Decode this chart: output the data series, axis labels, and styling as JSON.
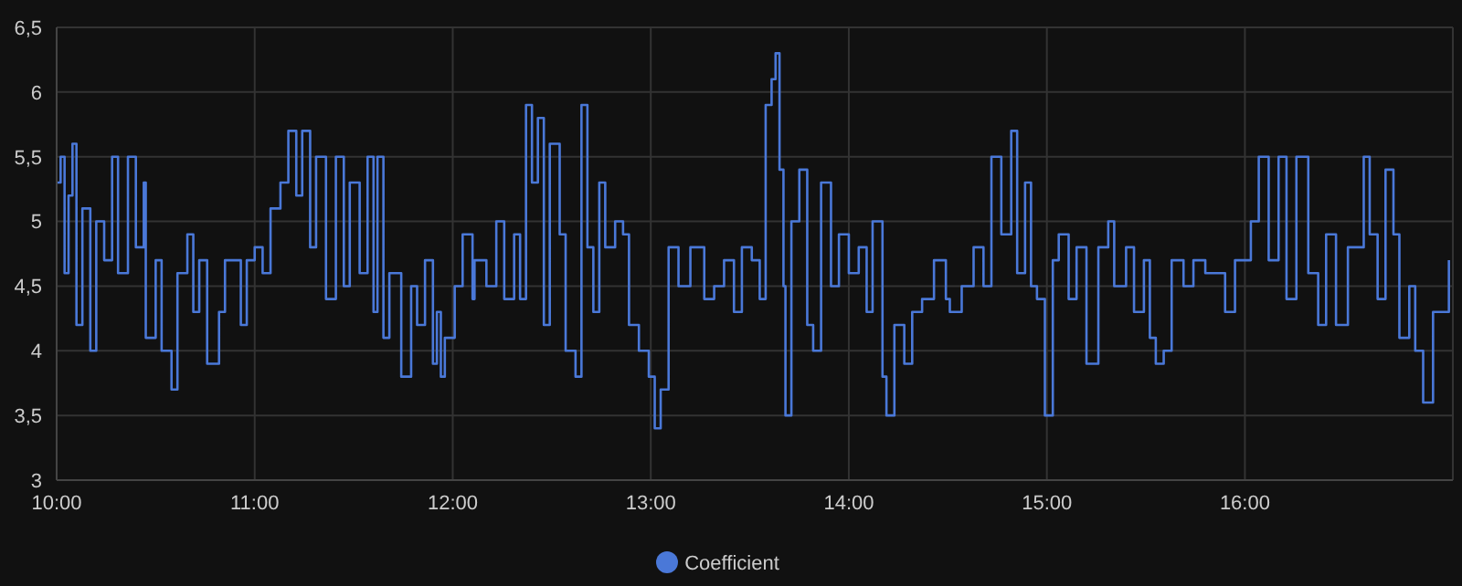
{
  "chart_data": {
    "type": "step",
    "x": [
      10.0,
      10.02,
      10.04,
      10.06,
      10.08,
      10.1,
      10.13,
      10.17,
      10.2,
      10.24,
      10.28,
      10.31,
      10.36,
      10.4,
      10.44,
      10.45,
      10.5,
      10.53,
      10.58,
      10.61,
      10.66,
      10.69,
      10.72,
      10.76,
      10.82,
      10.85,
      10.93,
      10.96,
      11.0,
      11.04,
      11.08,
      11.13,
      11.17,
      11.21,
      11.24,
      11.28,
      11.31,
      11.36,
      11.41,
      11.45,
      11.48,
      11.53,
      11.57,
      11.6,
      11.62,
      11.65,
      11.68,
      11.74,
      11.79,
      11.82,
      11.86,
      11.9,
      11.92,
      11.94,
      11.96,
      12.01,
      12.05,
      12.1,
      12.11,
      12.17,
      12.22,
      12.26,
      12.31,
      12.34,
      12.37,
      12.4,
      12.43,
      12.46,
      12.49,
      12.54,
      12.57,
      12.62,
      12.65,
      12.68,
      12.71,
      12.74,
      12.77,
      12.82,
      12.86,
      12.89,
      12.94,
      12.99,
      13.02,
      13.05,
      13.09,
      13.14,
      13.2,
      13.27,
      13.32,
      13.37,
      13.42,
      13.46,
      13.51,
      13.55,
      13.58,
      13.61,
      13.63,
      13.65,
      13.67,
      13.68,
      13.71,
      13.75,
      13.79,
      13.82,
      13.86,
      13.91,
      13.95,
      14.0,
      14.05,
      14.09,
      14.12,
      14.17,
      14.19,
      14.23,
      14.28,
      14.32,
      14.37,
      14.43,
      14.49,
      14.51,
      14.57,
      14.63,
      14.68,
      14.72,
      14.77,
      14.82,
      14.85,
      14.89,
      14.92,
      14.95,
      14.99,
      15.03,
      15.06,
      15.11,
      15.15,
      15.2,
      15.26,
      15.31,
      15.34,
      15.4,
      15.44,
      15.49,
      15.52,
      15.55,
      15.59,
      15.63,
      15.69,
      15.74,
      15.8,
      15.86,
      15.9,
      15.95,
      16.03,
      16.07,
      16.12,
      16.17,
      16.21,
      16.26,
      16.32,
      16.37,
      16.41,
      16.46,
      16.52,
      16.55,
      16.6,
      16.63,
      16.67,
      16.71,
      16.75,
      16.78,
      16.83,
      16.86,
      16.9,
      16.95,
      16.99,
      17.03
    ],
    "series": [
      {
        "name": "Coefficient",
        "color": "#4a78d8",
        "values": [
          5.3,
          5.5,
          4.6,
          5.2,
          5.6,
          4.2,
          5.1,
          4.0,
          5.0,
          4.7,
          5.5,
          4.6,
          5.5,
          4.8,
          5.3,
          4.1,
          4.7,
          4.0,
          3.7,
          4.6,
          4.9,
          4.3,
          4.7,
          3.9,
          4.3,
          4.7,
          4.2,
          4.7,
          4.8,
          4.6,
          5.1,
          5.3,
          5.7,
          5.2,
          5.7,
          4.8,
          5.5,
          4.4,
          5.5,
          4.5,
          5.3,
          4.6,
          5.5,
          4.3,
          5.5,
          4.1,
          4.6,
          3.8,
          4.5,
          4.2,
          4.7,
          3.9,
          4.3,
          3.8,
          4.1,
          4.5,
          4.9,
          4.4,
          4.7,
          4.5,
          5.0,
          4.4,
          4.9,
          4.4,
          5.9,
          5.3,
          5.8,
          4.2,
          5.6,
          4.9,
          4.0,
          3.8,
          5.9,
          4.8,
          4.3,
          5.3,
          4.8,
          5.0,
          4.9,
          4.2,
          4.0,
          3.8,
          3.4,
          3.7,
          4.8,
          4.5,
          4.8,
          4.4,
          4.5,
          4.7,
          4.3,
          4.8,
          4.7,
          4.4,
          5.9,
          6.1,
          6.3,
          5.4,
          4.5,
          3.5,
          5.0,
          5.4,
          4.2,
          4.0,
          5.3,
          4.5,
          4.9,
          4.6,
          4.8,
          4.3,
          5.0,
          3.8,
          3.5,
          4.2,
          3.9,
          4.3,
          4.4,
          4.7,
          4.4,
          4.3,
          4.5,
          4.8,
          4.5,
          5.5,
          4.9,
          5.7,
          4.6,
          5.3,
          4.5,
          4.4,
          3.5,
          4.7,
          4.9,
          4.4,
          4.8,
          3.9,
          4.8,
          5.0,
          4.5,
          4.8,
          4.3,
          4.7,
          4.1,
          3.9,
          4.0,
          4.7,
          4.5,
          4.7,
          4.6,
          4.6,
          4.3,
          4.7,
          5.0,
          5.5,
          4.7,
          5.5,
          4.4,
          5.5,
          4.6,
          4.2,
          4.9,
          4.2,
          4.8,
          4.8,
          5.5,
          4.9,
          4.4,
          5.4,
          4.9,
          4.1,
          4.5,
          4.0,
          3.6,
          4.3,
          4.3,
          4.7
        ]
      }
    ],
    "xlim": [
      10,
      17.05
    ],
    "xticks": [
      {
        "value": 10,
        "label": "10:00"
      },
      {
        "value": 11,
        "label": "11:00"
      },
      {
        "value": 12,
        "label": "12:00"
      },
      {
        "value": 13,
        "label": "13:00"
      },
      {
        "value": 14,
        "label": "14:00"
      },
      {
        "value": 15,
        "label": "15:00"
      },
      {
        "value": 16,
        "label": "16:00"
      }
    ],
    "ylim": [
      3,
      6.5
    ],
    "yticks": [
      3,
      {
        "value": 3.5,
        "label": "3,5"
      },
      4,
      {
        "value": 4.5,
        "label": "4,5"
      },
      5,
      {
        "value": 5.5,
        "label": "5,5"
      },
      6,
      {
        "value": 6.5,
        "label": "6,5"
      }
    ],
    "grid": true,
    "legend": "bottom",
    "marker": "none",
    "line_style": "solid"
  }
}
